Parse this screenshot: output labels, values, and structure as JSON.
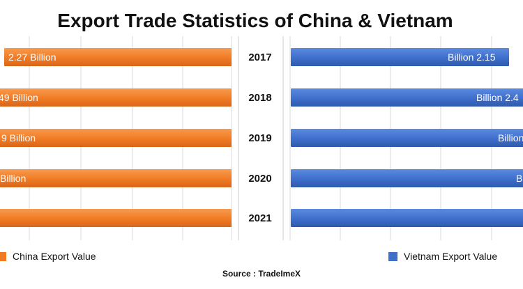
{
  "title": "Export Trade Statistics of China & Vietnam",
  "source": "Source : TradeImeX",
  "chart_data": {
    "type": "bar",
    "orientation": "horizontal",
    "layout": "back-to-back",
    "title": "Export Trade Statistics of China & Vietnam",
    "categories": [
      "2017",
      "2018",
      "2019",
      "2020",
      "2021"
    ],
    "series": [
      {
        "name": "China Export Value",
        "color": "#F07B24",
        "direction": "left",
        "labels": [
          "2.27 Billion",
          "49 Billion",
          "9 Billion",
          "Billion",
          ""
        ]
      },
      {
        "name": "Vietnam Export Value",
        "color": "#3E6FCB",
        "direction": "right",
        "labels": [
          "Billion 2.15",
          "Billion 2.4",
          "Billion",
          "B",
          ""
        ]
      }
    ],
    "grid": true,
    "legend": "bottom"
  }
}
